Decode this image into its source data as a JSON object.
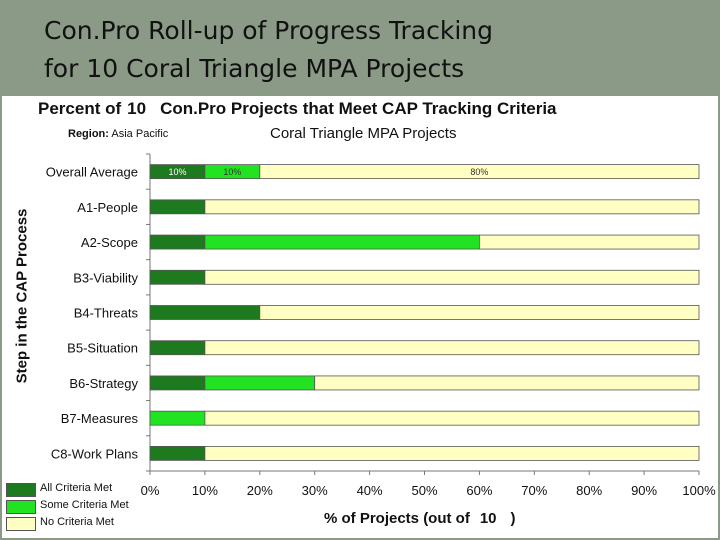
{
  "slide": {
    "title_line1": "Con.Pro Roll-up of Progress Tracking",
    "title_line2": "for 10 Coral Triangle MPA Projects"
  },
  "chart_data": {
    "type": "bar",
    "orientation": "horizontal-stacked",
    "title_prefix": "Percent of",
    "title_count": "10",
    "title_suffix": "Con.Pro Projects that Meet CAP Tracking Criteria",
    "region_label": "Region:",
    "region_value": "Asia Pacific",
    "subtitle": "Coral Triangle MPA Projects",
    "ylabel": "Step in the CAP Process",
    "xlabel_prefix": "% of Projects (out of",
    "xlabel_count": "10",
    "xlabel_suffix": ")",
    "xlim": [
      0,
      100
    ],
    "x_ticks": [
      "0%",
      "10%",
      "20%",
      "30%",
      "40%",
      "50%",
      "60%",
      "70%",
      "80%",
      "90%",
      "100%"
    ],
    "categories": [
      "Overall Average",
      "A1-People",
      "A2-Scope",
      "B3-Viability",
      "B4-Threats",
      "B5-Situation",
      "B6-Strategy",
      "B7-Measures",
      "C8-Work Plans"
    ],
    "series": [
      {
        "name": "All Criteria Met",
        "color": "#1e7a1e",
        "values": [
          10,
          10,
          10,
          10,
          20,
          10,
          10,
          0,
          10
        ]
      },
      {
        "name": "Some Criteria Met",
        "color": "#22e322",
        "values": [
          10,
          0,
          50,
          0,
          0,
          0,
          20,
          10,
          0
        ]
      },
      {
        "name": "No Criteria Met",
        "color": "#ffffc4",
        "values": [
          80,
          90,
          40,
          90,
          80,
          90,
          70,
          90,
          90
        ]
      }
    ],
    "data_labels": {
      "row": 0,
      "values": [
        "10%",
        "10%",
        "80%"
      ]
    },
    "legend_position": "bottom-left",
    "grid": false
  },
  "colors": {
    "slide_background": "#8a9a86",
    "panel_background": "#ffffff",
    "bar_outline": "#555555"
  }
}
